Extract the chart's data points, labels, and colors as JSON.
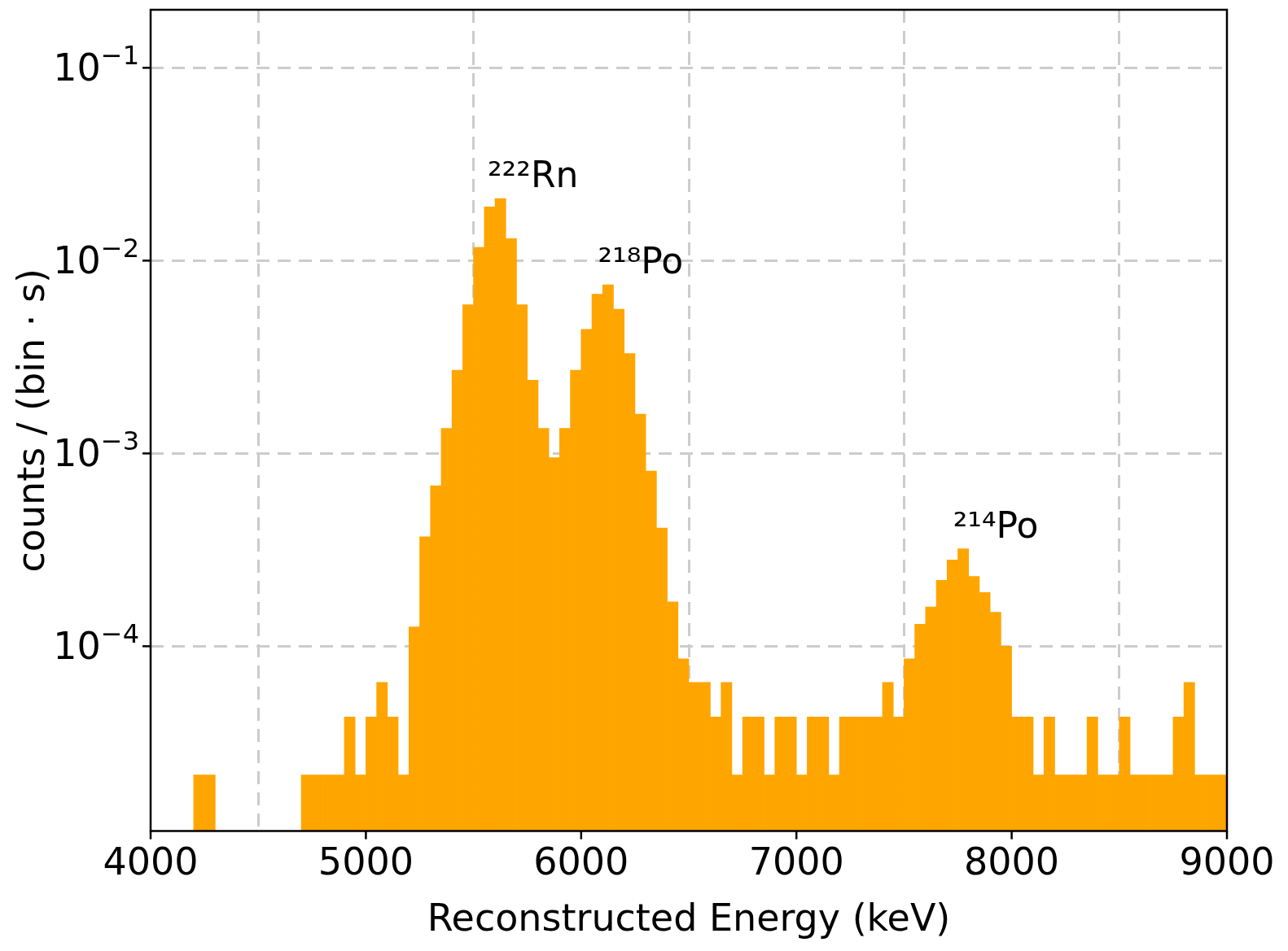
{
  "chart_data": {
    "type": "histogram",
    "xlabel": "Reconstructed Energy (keV)",
    "ylabel": "counts / (bin · s)",
    "bins": [
      4000,
      4050,
      4100,
      4150,
      4200,
      4250,
      4300,
      4350,
      4400,
      4450,
      4500,
      4550,
      4600,
      4650,
      4700,
      4750,
      4800,
      4850,
      4900,
      4950,
      5000,
      5050,
      5100,
      5150,
      5200,
      5250,
      5300,
      5350,
      5400,
      5450,
      5500,
      5550,
      5600,
      5650,
      5700,
      5750,
      5800,
      5850,
      5900,
      5950,
      6000,
      6050,
      6100,
      6150,
      6200,
      6250,
      6300,
      6350,
      6400,
      6450,
      6500,
      6550,
      6600,
      6650,
      6700,
      6750,
      6800,
      6850,
      6900,
      6950,
      7000,
      7050,
      7100,
      7150,
      7200,
      7250,
      7300,
      7350,
      7400,
      7450,
      7500,
      7550,
      7600,
      7650,
      7700,
      7750,
      7800,
      7850,
      7900,
      7950,
      8000,
      8050,
      8100,
      8150,
      8200,
      8250,
      8300,
      8350,
      8400,
      8450,
      8500,
      8550,
      8600,
      8650,
      8700,
      8750,
      8800,
      8850,
      8900,
      8950,
      9000
    ],
    "values": [
      null,
      null,
      null,
      null,
      2.15e-05,
      2.15e-05,
      null,
      null,
      null,
      null,
      null,
      null,
      null,
      null,
      2.15e-05,
      2.15e-05,
      2.15e-05,
      2.15e-05,
      4.3e-05,
      2.15e-05,
      4.3e-05,
      6.5e-05,
      4.3e-05,
      2.15e-05,
      0.000126,
      0.00037,
      0.00068,
      0.00135,
      0.0027,
      0.0059,
      0.0117,
      0.019,
      0.021,
      0.013,
      0.0059,
      0.0024,
      0.00135,
      0.00095,
      0.00135,
      0.0027,
      0.0044,
      0.0067,
      0.0075,
      0.0056,
      0.0033,
      0.0016,
      0.00081,
      0.00041,
      0.00017,
      8.6e-05,
      6.5e-05,
      6.5e-05,
      4.3e-05,
      6.5e-05,
      2.15e-05,
      4.3e-05,
      4.3e-05,
      2.15e-05,
      4.3e-05,
      4.3e-05,
      2.15e-05,
      4.3e-05,
      4.3e-05,
      2.15e-05,
      4.3e-05,
      4.3e-05,
      4.3e-05,
      4.3e-05,
      6.5e-05,
      4.3e-05,
      8.6e-05,
      0.00013,
      0.00016,
      0.00022,
      0.00028,
      0.00032,
      0.00023,
      0.00019,
      0.00015,
      0.0001,
      4.3e-05,
      4.3e-05,
      2.15e-05,
      4.3e-05,
      2.15e-05,
      2.15e-05,
      2.15e-05,
      4.3e-05,
      2.15e-05,
      2.15e-05,
      4.3e-05,
      2.15e-05,
      2.15e-05,
      2.15e-05,
      2.15e-05,
      4.3e-05,
      6.5e-05,
      2.15e-05,
      2.15e-05,
      2.15e-05
    ],
    "color": "#ffa500",
    "xlim": [
      4000,
      9000
    ],
    "xticks": [
      4000,
      5000,
      6000,
      7000,
      8000,
      9000
    ],
    "ylim": [
      1.1e-05,
      0.2
    ],
    "yticks": [
      {
        "value": 0.0001,
        "label": "10$^{−4}$"
      },
      {
        "value": 0.001,
        "label": "10$^{−3}$"
      },
      {
        "value": 0.01,
        "label": "10$^{−2}$"
      },
      {
        "value": 0.1,
        "label": "10$^{−1}$"
      }
    ],
    "log": true,
    "grid": true,
    "legend": false,
    "annotations": [
      {
        "text": "²²²Rn",
        "x": 5625,
        "y": 0.021
      },
      {
        "text": "²¹⁸Po",
        "x": 6125,
        "y": 0.0075
      },
      {
        "text": "²¹⁴Po",
        "x": 7775,
        "y": 0.00032
      }
    ]
  }
}
